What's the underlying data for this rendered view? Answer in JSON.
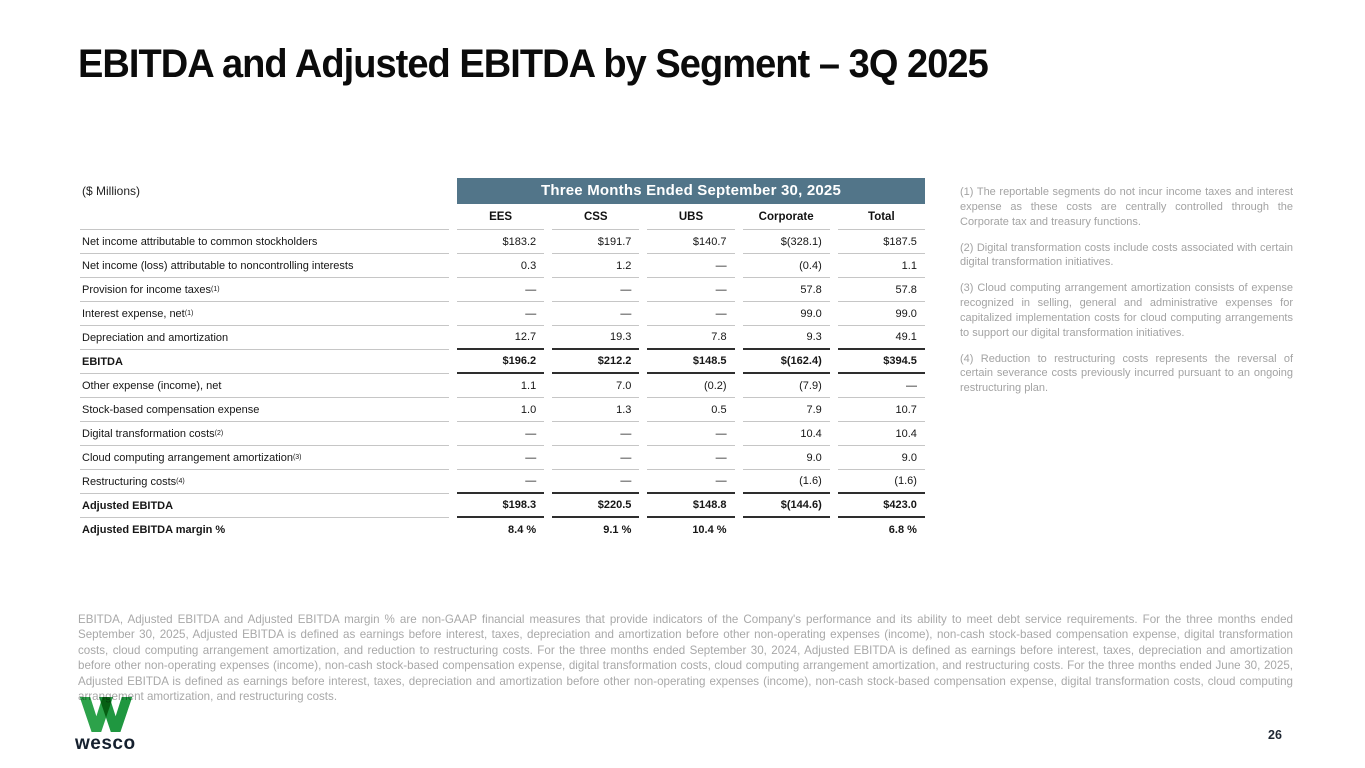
{
  "slide": {
    "title": "EBITDA and Adjusted EBITDA by Segment – 3Q 2025",
    "page_number": "26"
  },
  "colors": {
    "period_band": "#527589",
    "logo_green_light": "#2ca24a",
    "logo_green_dark": "#1f9740",
    "footnote_gray": "#a3a3a3"
  },
  "table": {
    "units_label": "($ Millions)",
    "period_header": "Three Months Ended September 30, 2025",
    "columns": [
      "EES",
      "CSS",
      "UBS",
      "Corporate",
      "Total"
    ],
    "rows": [
      {
        "label": "Net income attributable to common stockholders",
        "sup": "",
        "bold": false,
        "rule": "light",
        "values": [
          "$183.2",
          "$191.7",
          "$140.7",
          "$(328.1)",
          "$187.5"
        ]
      },
      {
        "label": "Net income (loss) attributable to noncontrolling interests",
        "sup": "",
        "bold": false,
        "rule": "light",
        "values": [
          "0.3",
          "1.2",
          "—",
          "(0.4)",
          "1.1"
        ]
      },
      {
        "label": "Provision for income taxes",
        "sup": "(1)",
        "bold": false,
        "rule": "light",
        "values": [
          "—",
          "—",
          "—",
          "57.8",
          "57.8"
        ]
      },
      {
        "label": "Interest expense, net",
        "sup": "(1)",
        "bold": false,
        "rule": "light",
        "values": [
          "—",
          "—",
          "—",
          "99.0",
          "99.0"
        ]
      },
      {
        "label": "Depreciation and amortization",
        "sup": "",
        "bold": false,
        "rule": "dark",
        "values": [
          "12.7",
          "19.3",
          "7.8",
          "9.3",
          "49.1"
        ]
      },
      {
        "label": "EBITDA",
        "sup": "",
        "bold": true,
        "rule": "dark",
        "values": [
          "$196.2",
          "$212.2",
          "$148.5",
          "$(162.4)",
          "$394.5"
        ]
      },
      {
        "label": "Other expense (income), net",
        "sup": "",
        "bold": false,
        "rule": "light",
        "values": [
          "1.1",
          "7.0",
          "(0.2)",
          "(7.9)",
          "—"
        ]
      },
      {
        "label": "Stock-based compensation expense",
        "sup": "",
        "bold": false,
        "rule": "light",
        "values": [
          "1.0",
          "1.3",
          "0.5",
          "7.9",
          "10.7"
        ]
      },
      {
        "label": "Digital transformation costs",
        "sup": "(2)",
        "bold": false,
        "rule": "light",
        "values": [
          "—",
          "—",
          "—",
          "10.4",
          "10.4"
        ]
      },
      {
        "label": "Cloud computing arrangement amortization",
        "sup": "(3)",
        "bold": false,
        "rule": "light",
        "values": [
          "—",
          "—",
          "—",
          "9.0",
          "9.0"
        ]
      },
      {
        "label": "Restructuring costs",
        "sup": "(4)",
        "bold": false,
        "rule": "dark",
        "values": [
          "—",
          "—",
          "—",
          "(1.6)",
          "(1.6)"
        ]
      },
      {
        "label": "Adjusted EBITDA",
        "sup": "",
        "bold": true,
        "rule": "dark",
        "values": [
          "$198.3",
          "$220.5",
          "$148.8",
          "$(144.6)",
          "$423.0"
        ]
      },
      {
        "label": "Adjusted EBITDA margin %",
        "sup": "",
        "bold": true,
        "rule": "none",
        "values": [
          "8.4 %",
          "9.1 %",
          "10.4 %",
          "",
          "6.8 %"
        ]
      }
    ]
  },
  "footnotes": [
    "(1)  The reportable segments do not incur income taxes and interest expense as these costs are centrally controlled through the Corporate tax and treasury functions.",
    "(2)  Digital transformation costs include costs associated with certain digital transformation initiatives.",
    "(3)  Cloud computing arrangement amortization consists of expense recognized in selling, general and administrative expenses for capitalized implementation costs for cloud computing arrangements to support our digital transformation initiatives.",
    "(4)  Reduction to restructuring costs represents the reversal of certain severance costs previously incurred pursuant to an ongoing restructuring plan."
  ],
  "disclaimer": "EBITDA, Adjusted EBITDA and Adjusted EBITDA margin % are non-GAAP financial measures that provide indicators of the Company's performance and its ability to meet debt service requirements. For the three months ended September 30, 2025, Adjusted EBITDA is defined as earnings before interest, taxes, depreciation and amortization before other non-operating expenses (income), non-cash stock-based compensation expense, digital transformation costs, cloud computing arrangement amortization, and reduction to restructuring costs. For the three months ended September 30, 2024, Adjusted EBITDA is defined as earnings before interest, taxes, depreciation and amortization before other non-operating expenses (income), non-cash stock-based compensation expense, digital transformation costs, cloud computing arrangement amortization, and restructuring costs. For the three months ended June 30, 2025, Adjusted EBITDA is defined as earnings before interest, taxes, depreciation and amortization before other non-operating expenses (income), non-cash stock-based compensation expense, digital transformation costs, cloud computing arrangement amortization, and restructuring costs.",
  "logo": {
    "brand": "wesco"
  }
}
